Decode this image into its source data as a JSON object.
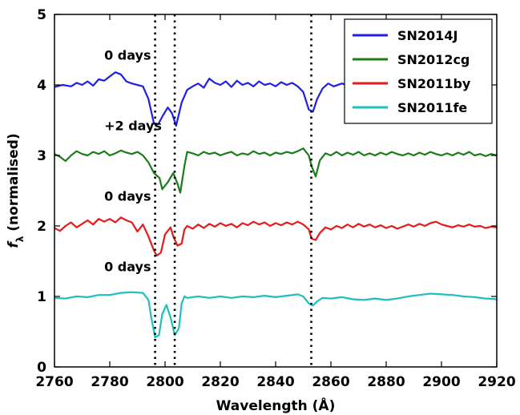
{
  "chart_data": {
    "type": "line",
    "xlabel": "Wavelength (Å)",
    "ylabel": "f_λ (normalised)",
    "ylabel_main": "f",
    "ylabel_sub": "λ",
    "ylabel_rest": " (normalised)",
    "xlim": [
      2760,
      2920
    ],
    "ylim": [
      0,
      5
    ],
    "xticks": [
      "2760",
      "2780",
      "2800",
      "2820",
      "2840",
      "2860",
      "2880",
      "2900",
      "2920"
    ],
    "yticks": [
      "0",
      "1",
      "2",
      "3",
      "4",
      "5"
    ],
    "grid": false,
    "legend_position": "top-right",
    "vlines": [
      2796.4,
      2803.5,
      2852.9
    ],
    "annotations": [
      {
        "text": "0 days",
        "x": 2778,
        "y": 4.36
      },
      {
        "text": "+2 days",
        "x": 2778,
        "y": 3.36
      },
      {
        "text": "0 days",
        "x": 2778,
        "y": 2.36
      },
      {
        "text": "0 days",
        "x": 2778,
        "y": 1.36
      }
    ],
    "series": [
      {
        "name": "SN2014J",
        "color": "#1f1fe6",
        "points": [
          [
            2760,
            3.97
          ],
          [
            2763,
            4.0
          ],
          [
            2766,
            3.98
          ],
          [
            2768,
            4.03
          ],
          [
            2770,
            4.0
          ],
          [
            2772,
            4.05
          ],
          [
            2774,
            3.99
          ],
          [
            2776,
            4.08
          ],
          [
            2778,
            4.06
          ],
          [
            2780,
            4.12
          ],
          [
            2782,
            4.18
          ],
          [
            2784,
            4.15
          ],
          [
            2786,
            4.05
          ],
          [
            2788,
            4.02
          ],
          [
            2790,
            4.0
          ],
          [
            2792,
            3.98
          ],
          [
            2794,
            3.8
          ],
          [
            2796,
            3.45
          ],
          [
            2797.5,
            3.44
          ],
          [
            2799,
            3.55
          ],
          [
            2801,
            3.68
          ],
          [
            2802.5,
            3.6
          ],
          [
            2804,
            3.42
          ],
          [
            2806,
            3.75
          ],
          [
            2808,
            3.93
          ],
          [
            2810,
            3.98
          ],
          [
            2812,
            4.02
          ],
          [
            2814,
            3.96
          ],
          [
            2816,
            4.09
          ],
          [
            2818,
            4.03
          ],
          [
            2820,
            4.0
          ],
          [
            2822,
            4.05
          ],
          [
            2824,
            3.97
          ],
          [
            2826,
            4.06
          ],
          [
            2828,
            4.0
          ],
          [
            2830,
            4.03
          ],
          [
            2832,
            3.98
          ],
          [
            2834,
            4.05
          ],
          [
            2836,
            4.0
          ],
          [
            2838,
            4.02
          ],
          [
            2840,
            3.98
          ],
          [
            2842,
            4.04
          ],
          [
            2844,
            4.0
          ],
          [
            2846,
            4.03
          ],
          [
            2848,
            3.98
          ],
          [
            2850,
            3.9
          ],
          [
            2852,
            3.65
          ],
          [
            2853.5,
            3.62
          ],
          [
            2855,
            3.8
          ],
          [
            2857,
            3.95
          ],
          [
            2859,
            4.02
          ],
          [
            2861,
            3.98
          ],
          [
            2864,
            4.02
          ],
          [
            2867,
            3.98
          ],
          [
            2870,
            4.0
          ]
        ]
      },
      {
        "name": "SN2012cg",
        "color": "#1a7d1a",
        "points": [
          [
            2760,
            3.02
          ],
          [
            2762,
            2.98
          ],
          [
            2764,
            2.92
          ],
          [
            2766,
            3.0
          ],
          [
            2768,
            3.06
          ],
          [
            2770,
            3.02
          ],
          [
            2772,
            3.0
          ],
          [
            2774,
            3.05
          ],
          [
            2776,
            3.02
          ],
          [
            2778,
            3.06
          ],
          [
            2780,
            3.0
          ],
          [
            2782,
            3.03
          ],
          [
            2784,
            3.07
          ],
          [
            2786,
            3.04
          ],
          [
            2788,
            3.02
          ],
          [
            2790,
            3.05
          ],
          [
            2792,
            3.0
          ],
          [
            2794,
            2.9
          ],
          [
            2796,
            2.75
          ],
          [
            2798,
            2.68
          ],
          [
            2799,
            2.52
          ],
          [
            2801,
            2.62
          ],
          [
            2803,
            2.75
          ],
          [
            2804.5,
            2.6
          ],
          [
            2805.5,
            2.47
          ],
          [
            2807,
            2.85
          ],
          [
            2808,
            3.05
          ],
          [
            2810,
            3.03
          ],
          [
            2812,
            3.0
          ],
          [
            2814,
            3.05
          ],
          [
            2816,
            3.02
          ],
          [
            2818,
            3.04
          ],
          [
            2820,
            3.0
          ],
          [
            2822,
            3.03
          ],
          [
            2824,
            3.05
          ],
          [
            2826,
            3.0
          ],
          [
            2828,
            3.03
          ],
          [
            2830,
            3.01
          ],
          [
            2832,
            3.06
          ],
          [
            2834,
            3.02
          ],
          [
            2836,
            3.04
          ],
          [
            2838,
            3.0
          ],
          [
            2840,
            3.04
          ],
          [
            2842,
            3.02
          ],
          [
            2844,
            3.05
          ],
          [
            2846,
            3.03
          ],
          [
            2848,
            3.06
          ],
          [
            2850,
            3.1
          ],
          [
            2852,
            3.0
          ],
          [
            2853,
            2.85
          ],
          [
            2854.5,
            2.7
          ],
          [
            2856,
            2.93
          ],
          [
            2858,
            3.03
          ],
          [
            2860,
            3.0
          ],
          [
            2862,
            3.05
          ],
          [
            2864,
            3.0
          ],
          [
            2866,
            3.04
          ],
          [
            2868,
            3.01
          ],
          [
            2870,
            3.05
          ],
          [
            2872,
            3.0
          ],
          [
            2874,
            3.03
          ],
          [
            2876,
            3.0
          ],
          [
            2878,
            3.04
          ],
          [
            2880,
            3.01
          ],
          [
            2882,
            3.05
          ],
          [
            2884,
            3.02
          ],
          [
            2886,
            3.0
          ],
          [
            2888,
            3.03
          ],
          [
            2890,
            3.0
          ],
          [
            2892,
            3.04
          ],
          [
            2894,
            3.01
          ],
          [
            2896,
            3.05
          ],
          [
            2898,
            3.02
          ],
          [
            2900,
            3.0
          ],
          [
            2902,
            3.03
          ],
          [
            2904,
            3.0
          ],
          [
            2906,
            3.04
          ],
          [
            2908,
            3.01
          ],
          [
            2910,
            3.05
          ],
          [
            2912,
            3.0
          ],
          [
            2914,
            3.02
          ],
          [
            2916,
            2.99
          ],
          [
            2918,
            3.02
          ],
          [
            2920,
            3.0
          ]
        ]
      },
      {
        "name": "SN2011by",
        "color": "#e61a1a",
        "points": [
          [
            2760,
            1.97
          ],
          [
            2762,
            1.93
          ],
          [
            2764,
            2.0
          ],
          [
            2766,
            2.05
          ],
          [
            2768,
            1.98
          ],
          [
            2770,
            2.03
          ],
          [
            2772,
            2.08
          ],
          [
            2774,
            2.02
          ],
          [
            2776,
            2.1
          ],
          [
            2778,
            2.06
          ],
          [
            2780,
            2.1
          ],
          [
            2782,
            2.05
          ],
          [
            2784,
            2.12
          ],
          [
            2786,
            2.08
          ],
          [
            2788,
            2.05
          ],
          [
            2790,
            1.92
          ],
          [
            2792,
            2.02
          ],
          [
            2794,
            1.85
          ],
          [
            2796,
            1.65
          ],
          [
            2797,
            1.58
          ],
          [
            2798.5,
            1.62
          ],
          [
            2800,
            1.88
          ],
          [
            2802,
            1.98
          ],
          [
            2803,
            1.85
          ],
          [
            2804.5,
            1.72
          ],
          [
            2806,
            1.75
          ],
          [
            2807,
            1.95
          ],
          [
            2808,
            2.0
          ],
          [
            2810,
            1.96
          ],
          [
            2812,
            2.02
          ],
          [
            2814,
            1.97
          ],
          [
            2816,
            2.03
          ],
          [
            2818,
            1.99
          ],
          [
            2820,
            2.04
          ],
          [
            2822,
            2.0
          ],
          [
            2824,
            2.03
          ],
          [
            2826,
            1.98
          ],
          [
            2828,
            2.04
          ],
          [
            2830,
            2.01
          ],
          [
            2832,
            2.06
          ],
          [
            2834,
            2.02
          ],
          [
            2836,
            2.05
          ],
          [
            2838,
            2.0
          ],
          [
            2840,
            2.04
          ],
          [
            2842,
            2.01
          ],
          [
            2844,
            2.05
          ],
          [
            2846,
            2.02
          ],
          [
            2848,
            2.06
          ],
          [
            2850,
            2.02
          ],
          [
            2852,
            1.95
          ],
          [
            2853,
            1.82
          ],
          [
            2854.5,
            1.8
          ],
          [
            2856,
            1.9
          ],
          [
            2858,
            1.98
          ],
          [
            2860,
            1.95
          ],
          [
            2862,
            2.0
          ],
          [
            2864,
            1.97
          ],
          [
            2866,
            2.02
          ],
          [
            2868,
            1.98
          ],
          [
            2870,
            2.03
          ],
          [
            2872,
            1.99
          ],
          [
            2874,
            2.02
          ],
          [
            2876,
            1.98
          ],
          [
            2878,
            2.01
          ],
          [
            2880,
            1.97
          ],
          [
            2882,
            2.0
          ],
          [
            2884,
            1.96
          ],
          [
            2886,
            1.99
          ],
          [
            2888,
            2.02
          ],
          [
            2890,
            1.99
          ],
          [
            2892,
            2.03
          ],
          [
            2894,
            2.0
          ],
          [
            2896,
            2.04
          ],
          [
            2898,
            2.06
          ],
          [
            2900,
            2.02
          ],
          [
            2902,
            2.0
          ],
          [
            2904,
            1.98
          ],
          [
            2906,
            2.01
          ],
          [
            2908,
            1.99
          ],
          [
            2910,
            2.02
          ],
          [
            2912,
            1.99
          ],
          [
            2914,
            2.0
          ],
          [
            2916,
            1.97
          ],
          [
            2918,
            1.99
          ],
          [
            2920,
            1.98
          ]
        ]
      },
      {
        "name": "SN2011fe",
        "color": "#1fbfbf",
        "points": [
          [
            2760,
            0.98
          ],
          [
            2764,
            0.97
          ],
          [
            2768,
            1.0
          ],
          [
            2772,
            0.99
          ],
          [
            2776,
            1.02
          ],
          [
            2780,
            1.02
          ],
          [
            2784,
            1.05
          ],
          [
            2788,
            1.06
          ],
          [
            2792,
            1.05
          ],
          [
            2794,
            0.95
          ],
          [
            2795,
            0.7
          ],
          [
            2796.4,
            0.42
          ],
          [
            2797.8,
            0.45
          ],
          [
            2799,
            0.75
          ],
          [
            2800.5,
            0.88
          ],
          [
            2802,
            0.7
          ],
          [
            2803.5,
            0.45
          ],
          [
            2805,
            0.55
          ],
          [
            2806,
            0.9
          ],
          [
            2807,
            1.0
          ],
          [
            2808,
            0.98
          ],
          [
            2812,
            1.0
          ],
          [
            2816,
            0.98
          ],
          [
            2820,
            1.0
          ],
          [
            2824,
            0.98
          ],
          [
            2828,
            1.0
          ],
          [
            2832,
            0.99
          ],
          [
            2836,
            1.01
          ],
          [
            2840,
            0.99
          ],
          [
            2844,
            1.01
          ],
          [
            2848,
            1.03
          ],
          [
            2850,
            1.0
          ],
          [
            2852,
            0.9
          ],
          [
            2853.5,
            0.87
          ],
          [
            2855,
            0.93
          ],
          [
            2857,
            0.98
          ],
          [
            2860,
            0.97
          ],
          [
            2864,
            0.99
          ],
          [
            2868,
            0.96
          ],
          [
            2872,
            0.95
          ],
          [
            2876,
            0.97
          ],
          [
            2880,
            0.95
          ],
          [
            2884,
            0.97
          ],
          [
            2888,
            1.0
          ],
          [
            2892,
            1.02
          ],
          [
            2896,
            1.04
          ],
          [
            2900,
            1.03
          ],
          [
            2904,
            1.02
          ],
          [
            2908,
            1.0
          ],
          [
            2912,
            0.99
          ],
          [
            2916,
            0.97
          ],
          [
            2920,
            0.96
          ]
        ]
      }
    ]
  }
}
